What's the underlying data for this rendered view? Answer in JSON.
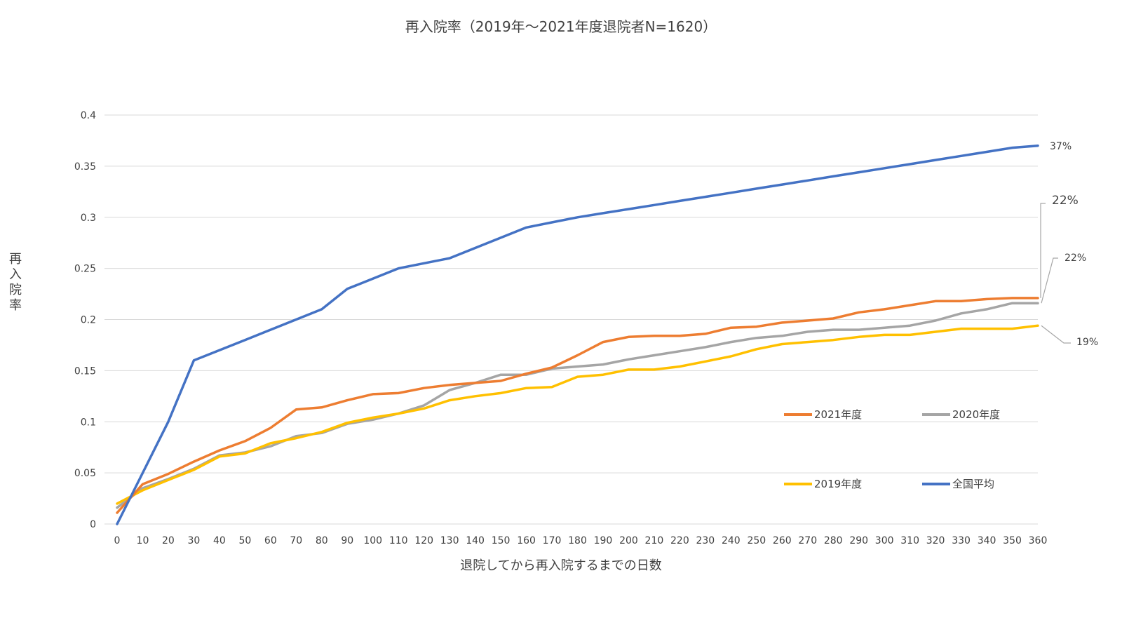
{
  "chart_data": {
    "type": "line",
    "title": "再入院率（2019年～2021年度退院者N=1620）",
    "xlabel": "退院してから再入院するまでの日数",
    "ylabel": "再入院率",
    "x": [
      0,
      10,
      20,
      30,
      40,
      50,
      60,
      70,
      80,
      90,
      100,
      110,
      120,
      130,
      140,
      150,
      160,
      170,
      180,
      190,
      200,
      210,
      220,
      230,
      240,
      250,
      260,
      270,
      280,
      290,
      300,
      310,
      320,
      330,
      340,
      350,
      360
    ],
    "xlim": [
      0,
      360
    ],
    "ylim": [
      0,
      0.4
    ],
    "yticks": [
      0,
      0.05,
      0.1,
      0.15,
      0.2,
      0.25,
      0.3,
      0.35,
      0.4
    ],
    "ytick_labels": [
      "0",
      "0.05",
      "0.1",
      "0.15",
      "0.2",
      "0.25",
      "0.3",
      "0.35",
      "0.4"
    ],
    "grid": true,
    "series": [
      {
        "name": "2021年度",
        "color": "#ED7D31",
        "values": [
          0.011,
          0.039,
          0.049,
          0.061,
          0.072,
          0.081,
          0.094,
          0.112,
          0.114,
          0.121,
          0.127,
          0.128,
          0.133,
          0.136,
          0.138,
          0.14,
          0.147,
          0.153,
          0.165,
          0.178,
          0.183,
          0.184,
          0.184,
          0.186,
          0.192,
          0.193,
          0.197,
          0.199,
          0.201,
          0.207,
          0.21,
          0.214,
          0.218,
          0.218,
          0.22,
          0.221,
          0.221
        ],
        "end_label": "22%"
      },
      {
        "name": "2020年度",
        "color": "#A5A5A5",
        "values": [
          0.016,
          0.035,
          0.044,
          0.054,
          0.067,
          0.07,
          0.076,
          0.086,
          0.089,
          0.098,
          0.102,
          0.108,
          0.116,
          0.131,
          0.138,
          0.146,
          0.146,
          0.152,
          0.154,
          0.156,
          0.161,
          0.165,
          0.169,
          0.173,
          0.178,
          0.182,
          0.184,
          0.188,
          0.19,
          0.19,
          0.192,
          0.194,
          0.199,
          0.206,
          0.21,
          0.216,
          0.216
        ],
        "end_label": "22%"
      },
      {
        "name": "2019年度",
        "color": "#FFC000",
        "values": [
          0.02,
          0.033,
          0.043,
          0.053,
          0.066,
          0.069,
          0.079,
          0.084,
          0.09,
          0.099,
          0.104,
          0.108,
          0.113,
          0.121,
          0.125,
          0.128,
          0.133,
          0.134,
          0.144,
          0.146,
          0.151,
          0.151,
          0.154,
          0.159,
          0.164,
          0.171,
          0.176,
          0.178,
          0.18,
          0.183,
          0.185,
          0.185,
          0.188,
          0.191,
          0.191,
          0.191,
          0.194
        ],
        "end_label": "19%"
      },
      {
        "name": "全国平均",
        "color": "#4472C4",
        "values": [
          0,
          0.05,
          0.1,
          0.16,
          0.17,
          0.18,
          0.19,
          0.2,
          0.21,
          0.23,
          0.24,
          0.25,
          0.255,
          0.26,
          0.27,
          0.28,
          0.29,
          0.295,
          0.3,
          0.304,
          0.308,
          0.312,
          0.316,
          0.32,
          0.324,
          0.328,
          0.332,
          0.336,
          0.34,
          0.344,
          0.348,
          0.352,
          0.356,
          0.36,
          0.364,
          0.368,
          0.37
        ],
        "end_label": "37%"
      }
    ],
    "legend": {
      "placement": "lower-right",
      "order": [
        "2021年度",
        "2020年度",
        "2019年度",
        "全国平均"
      ]
    }
  }
}
